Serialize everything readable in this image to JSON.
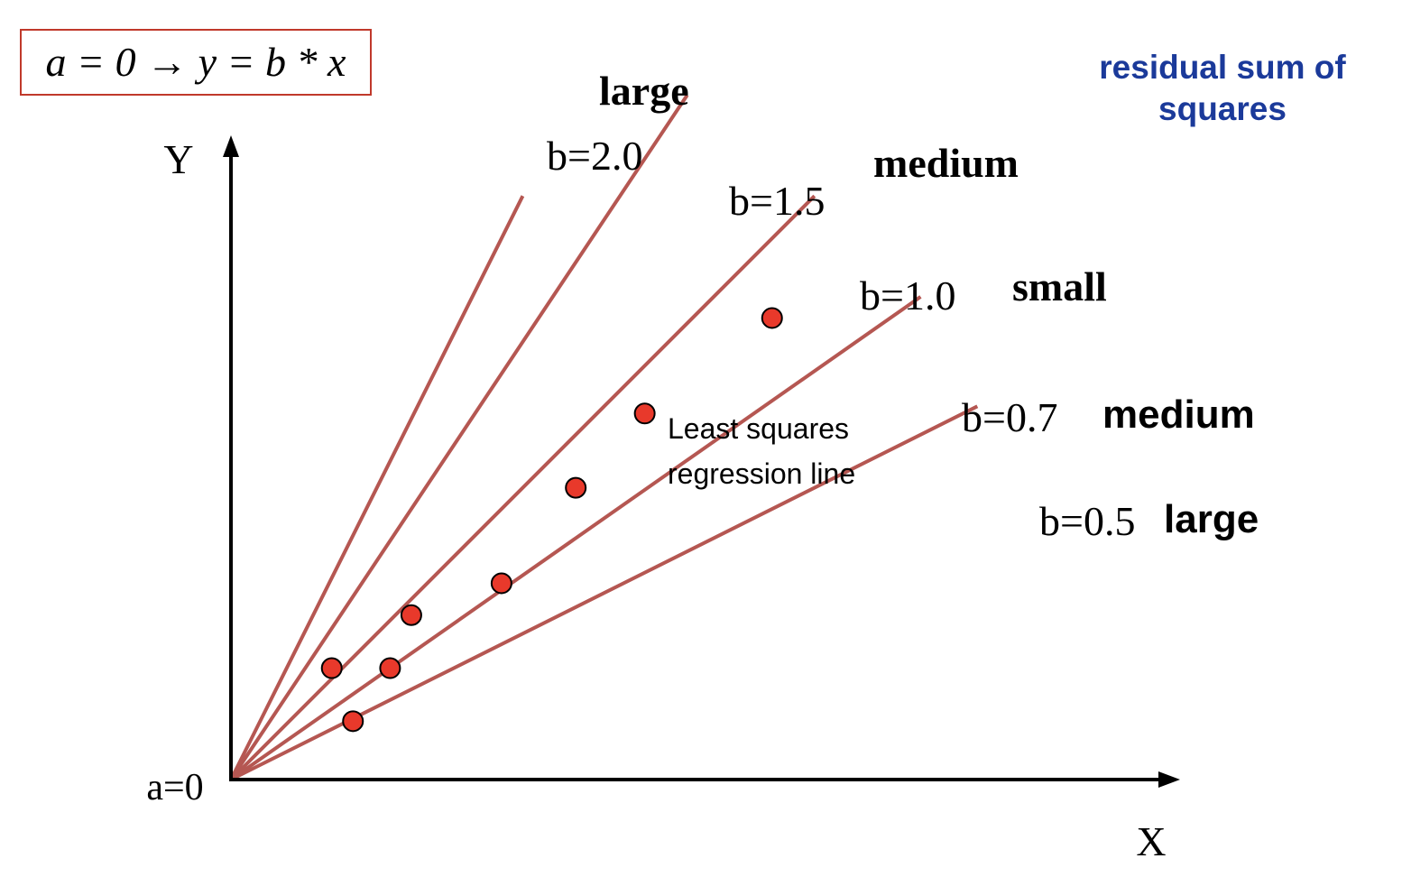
{
  "formula": {
    "text": "a = 0 → y = b * x"
  },
  "title": "residual sum of squares",
  "axes": {
    "x_label": "X",
    "y_label": "Y",
    "origin_label": "a=0"
  },
  "colors": {
    "line": "#b55752",
    "point": "#e8392b",
    "point_outline": "#000000",
    "title": "#1b3a9a",
    "formula_border": "#c0392b"
  },
  "chart_data": {
    "type": "line",
    "intercept": 0,
    "lines": [
      {
        "label": "b=2.0",
        "slope": 2.0,
        "rss": "large"
      },
      {
        "label": "b=1.5",
        "slope": 1.5,
        "rss": "medium"
      },
      {
        "label": "b=1.0",
        "slope": 1.0,
        "rss": "small"
      },
      {
        "label": "b=0.7",
        "slope": 0.7,
        "rss": "medium"
      },
      {
        "label": "b=0.5",
        "slope": 0.5,
        "rss": "large"
      }
    ],
    "points": [
      {
        "x": 0.19,
        "y": 0.21
      },
      {
        "x": 0.23,
        "y": 0.11
      },
      {
        "x": 0.3,
        "y": 0.21
      },
      {
        "x": 0.34,
        "y": 0.31
      },
      {
        "x": 0.51,
        "y": 0.37
      },
      {
        "x": 0.65,
        "y": 0.55
      },
      {
        "x": 0.78,
        "y": 0.69
      },
      {
        "x": 1.02,
        "y": 0.87
      }
    ],
    "annotation": {
      "line1": "Least squares",
      "line2": "regression line"
    }
  }
}
